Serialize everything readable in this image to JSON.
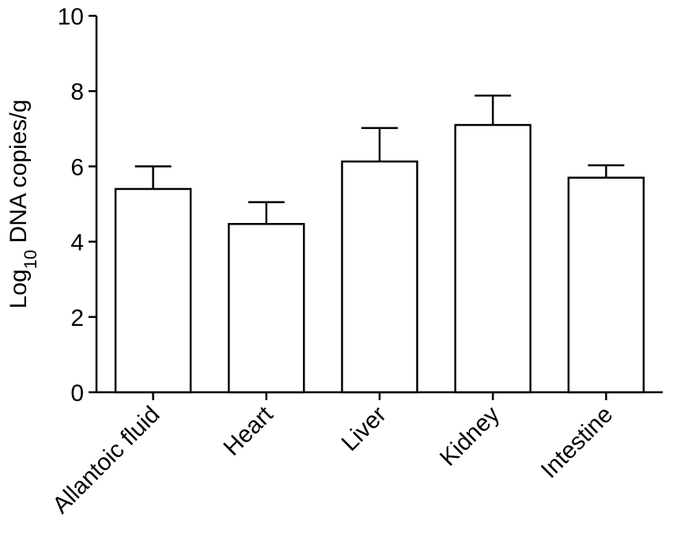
{
  "chart_data": {
    "type": "bar",
    "categories": [
      "Allantoic fluid",
      "Heart",
      "Liver",
      "Kidney",
      "Intestine"
    ],
    "values": [
      5.4,
      4.47,
      6.13,
      7.1,
      5.7
    ],
    "error_upper": [
      6.0,
      5.05,
      7.02,
      7.88,
      6.03
    ],
    "ylabel_main": "Log",
    "ylabel_sub": "10",
    "ylabel_rest": " DNA copies/g",
    "ylim": [
      0,
      10
    ],
    "yticks": [
      "0",
      "2",
      "4",
      "6",
      "8",
      "10"
    ],
    "bar_fill": "#ffffff",
    "bar_stroke": "#000000",
    "grid": false,
    "legend": "none"
  }
}
